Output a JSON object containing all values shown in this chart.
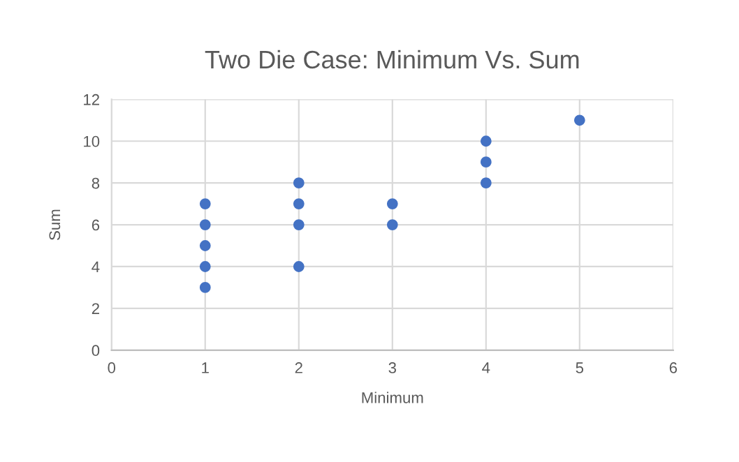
{
  "chart_data": {
    "type": "scatter",
    "title": "Two Die Case: Minimum Vs. Sum",
    "xlabel": "Minimum",
    "ylabel": "Sum",
    "series": [
      {
        "color": "#4472c4",
        "x": [
          1,
          1,
          1,
          1,
          1,
          2,
          2,
          2,
          2,
          3,
          3,
          4,
          4,
          4,
          5
        ],
        "values": [
          3,
          4,
          5,
          6,
          7,
          4,
          6,
          7,
          8,
          6,
          7,
          8,
          9,
          10,
          11
        ]
      }
    ],
    "xlim": [
      0,
      6
    ],
    "xticks": [
      0,
      1,
      2,
      3,
      4,
      5,
      6
    ],
    "ylim": [
      0,
      12
    ],
    "yticks": [
      0,
      2,
      4,
      6,
      8,
      10,
      12
    ],
    "grid": true,
    "marker": "circle"
  }
}
